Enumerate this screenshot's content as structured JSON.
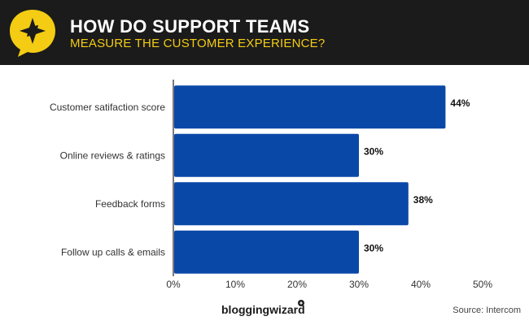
{
  "header": {
    "title": "HOW DO SUPPORT TEAMS",
    "subtitle": "MEASURE THE CUSTOMER EXPERIENCE?",
    "badge_icon": "star-speech-bubble-icon",
    "colors": {
      "background": "#1b1b1b",
      "title": "#ffffff",
      "subtitle": "#f3cc13",
      "badge": "#f3cc13"
    }
  },
  "chart_data": {
    "type": "bar",
    "orientation": "horizontal",
    "categories": [
      "Customer satifaction score",
      "Online reviews & ratings",
      "Feedback forms",
      "Follow up calls & emails"
    ],
    "values": [
      44,
      30,
      38,
      30
    ],
    "value_labels": [
      "44%",
      "30%",
      "38%",
      "30%"
    ],
    "xlim": [
      0,
      50
    ],
    "xticks": [
      "0%",
      "10%",
      "20%",
      "30%",
      "40%",
      "50%"
    ],
    "grid": false,
    "bar_color": "#0a48a8"
  },
  "footer": {
    "brand": "bloggingwizard",
    "source": "Source: Intercom"
  }
}
